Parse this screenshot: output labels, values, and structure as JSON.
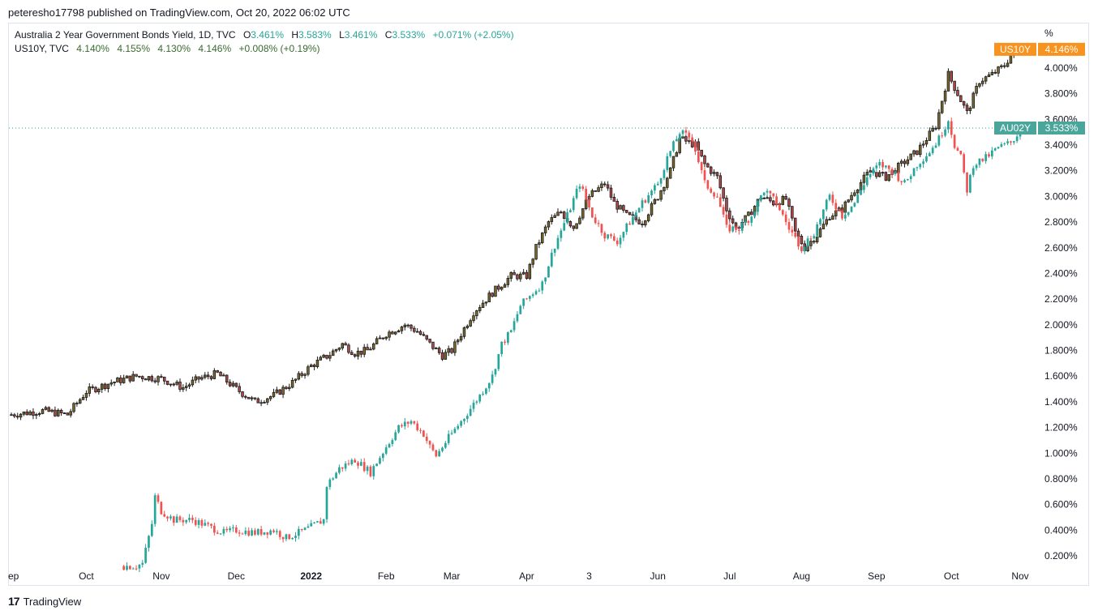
{
  "publisher": "peteresho17798 published on TradingView.com, Oct 20, 2022 06:02 UTC",
  "legend": [
    {
      "title": "Australia 2 Year Government Bonds Yield, 1D, TVC",
      "o_label": "O",
      "o": "3.461%",
      "h_label": "H",
      "h": "3.583%",
      "l_label": "L",
      "l": "3.461%",
      "c_label": "C",
      "c": "3.533%",
      "change": "+0.071% (+2.05%)"
    },
    {
      "title": "US10Y, TVC",
      "o": "4.140%",
      "h": "4.155%",
      "l": "4.130%",
      "c": "4.146%",
      "change": "+0.008% (+0.19%)"
    }
  ],
  "footer": {
    "logo": "17",
    "brand": "TradingView"
  },
  "chart_data": {
    "type": "candlestick",
    "unit": "%",
    "ylim": [
      0.05,
      4.35
    ],
    "y_ticks": [
      "4.000%",
      "3.800%",
      "3.600%",
      "3.400%",
      "3.200%",
      "3.000%",
      "2.800%",
      "2.600%",
      "2.400%",
      "2.200%",
      "2.000%",
      "1.800%",
      "1.600%",
      "1.400%",
      "1.200%",
      "1.000%",
      "0.800%",
      "0.600%",
      "0.400%",
      "0.200%"
    ],
    "y_tick_values": [
      4.0,
      3.8,
      3.6,
      3.4,
      3.2,
      3.0,
      2.8,
      2.6,
      2.4,
      2.2,
      2.0,
      1.8,
      1.6,
      1.4,
      1.2,
      1.0,
      0.8,
      0.6,
      0.4,
      0.2
    ],
    "y_unit_label": "%",
    "x_ticks": [
      {
        "label": "ep",
        "bold": false
      },
      {
        "label": "Oct",
        "bold": false
      },
      {
        "label": "Nov",
        "bold": false
      },
      {
        "label": "Dec",
        "bold": false
      },
      {
        "label": "2022",
        "bold": true
      },
      {
        "label": "Feb",
        "bold": false
      },
      {
        "label": "Mar",
        "bold": false
      },
      {
        "label": "Apr",
        "bold": false
      },
      {
        "label": "3",
        "bold": false
      },
      {
        "label": "Jun",
        "bold": false
      },
      {
        "label": "Jul",
        "bold": false
      },
      {
        "label": "Aug",
        "bold": false
      },
      {
        "label": "Sep",
        "bold": false
      },
      {
        "label": "Oct",
        "bold": false
      },
      {
        "label": "Nov",
        "bold": false
      }
    ],
    "x_tick_index": [
      0,
      24,
      48,
      72,
      96,
      120,
      141,
      165,
      185,
      207,
      230,
      253,
      277,
      301,
      323
    ],
    "x_range": [
      0,
      335
    ],
    "series": [
      {
        "name": "US10Y",
        "style": "hollow-dark",
        "start_index": 0,
        "last_value": 4.146,
        "last_label": "4.146%",
        "badge": "US10Y",
        "path": [
          [
            0,
            1.3
          ],
          [
            10,
            1.33
          ],
          [
            18,
            1.3
          ],
          [
            24,
            1.48
          ],
          [
            32,
            1.55
          ],
          [
            40,
            1.6
          ],
          [
            48,
            1.58
          ],
          [
            55,
            1.51
          ],
          [
            60,
            1.58
          ],
          [
            66,
            1.62
          ],
          [
            72,
            1.5
          ],
          [
            78,
            1.4
          ],
          [
            84,
            1.45
          ],
          [
            90,
            1.55
          ],
          [
            96,
            1.68
          ],
          [
            102,
            1.77
          ],
          [
            106,
            1.85
          ],
          [
            110,
            1.78
          ],
          [
            114,
            1.8
          ],
          [
            120,
            1.93
          ],
          [
            126,
            2.0
          ],
          [
            130,
            1.95
          ],
          [
            134,
            1.85
          ],
          [
            138,
            1.76
          ],
          [
            141,
            1.8
          ],
          [
            148,
            2.1
          ],
          [
            154,
            2.25
          ],
          [
            160,
            2.38
          ],
          [
            165,
            2.38
          ],
          [
            168,
            2.6
          ],
          [
            172,
            2.8
          ],
          [
            176,
            2.88
          ],
          [
            180,
            2.76
          ],
          [
            185,
            3.0
          ],
          [
            190,
            3.1
          ],
          [
            193,
            2.95
          ],
          [
            197,
            2.85
          ],
          [
            202,
            2.8
          ],
          [
            207,
            3.0
          ],
          [
            211,
            3.2
          ],
          [
            214,
            3.45
          ],
          [
            219,
            3.4
          ],
          [
            222,
            3.25
          ],
          [
            226,
            3.15
          ],
          [
            229,
            2.9
          ],
          [
            232,
            2.75
          ],
          [
            236,
            2.85
          ],
          [
            240,
            3.0
          ],
          [
            244,
            2.95
          ],
          [
            248,
            2.98
          ],
          [
            251,
            2.72
          ],
          [
            254,
            2.6
          ],
          [
            258,
            2.7
          ],
          [
            262,
            2.85
          ],
          [
            266,
            2.9
          ],
          [
            270,
            3.05
          ],
          [
            275,
            3.2
          ],
          [
            280,
            3.15
          ],
          [
            285,
            3.25
          ],
          [
            290,
            3.35
          ],
          [
            296,
            3.55
          ],
          [
            300,
            3.95
          ],
          [
            303,
            3.8
          ],
          [
            306,
            3.65
          ],
          [
            310,
            3.9
          ],
          [
            314,
            3.95
          ],
          [
            318,
            4.02
          ],
          [
            320,
            4.1
          ],
          [
            322,
            4.15
          ],
          [
            323,
            4.146
          ]
        ]
      },
      {
        "name": "AU02Y",
        "style": "colored",
        "start_index": 36,
        "last_value": 3.533,
        "last_label": "3.533%",
        "badge": "AU02Y",
        "path": [
          [
            36,
            0.12
          ],
          [
            40,
            0.12
          ],
          [
            42,
            0.14
          ],
          [
            45,
            0.45
          ],
          [
            46,
            0.66
          ],
          [
            48,
            0.55
          ],
          [
            52,
            0.48
          ],
          [
            58,
            0.48
          ],
          [
            64,
            0.42
          ],
          [
            68,
            0.38
          ],
          [
            72,
            0.4
          ],
          [
            78,
            0.38
          ],
          [
            84,
            0.4
          ],
          [
            88,
            0.34
          ],
          [
            94,
            0.4
          ],
          [
            100,
            0.48
          ],
          [
            101,
            0.75
          ],
          [
            105,
            0.88
          ],
          [
            110,
            0.95
          ],
          [
            115,
            0.85
          ],
          [
            120,
            1.05
          ],
          [
            124,
            1.2
          ],
          [
            128,
            1.25
          ],
          [
            132,
            1.15
          ],
          [
            134,
            1.05
          ],
          [
            136,
            0.98
          ],
          [
            140,
            1.12
          ],
          [
            145,
            1.28
          ],
          [
            150,
            1.45
          ],
          [
            154,
            1.6
          ],
          [
            157,
            1.85
          ],
          [
            160,
            1.95
          ],
          [
            163,
            2.15
          ],
          [
            167,
            2.25
          ],
          [
            170,
            2.32
          ],
          [
            174,
            2.62
          ],
          [
            178,
            2.85
          ],
          [
            182,
            3.1
          ],
          [
            186,
            2.85
          ],
          [
            190,
            2.7
          ],
          [
            194,
            2.65
          ],
          [
            198,
            2.8
          ],
          [
            202,
            2.95
          ],
          [
            207,
            3.1
          ],
          [
            210,
            3.3
          ],
          [
            214,
            3.5
          ],
          [
            218,
            3.45
          ],
          [
            222,
            3.1
          ],
          [
            226,
            3.0
          ],
          [
            229,
            2.75
          ],
          [
            233,
            2.75
          ],
          [
            237,
            2.85
          ],
          [
            241,
            3.05
          ],
          [
            245,
            2.95
          ],
          [
            249,
            2.75
          ],
          [
            253,
            2.6
          ],
          [
            257,
            2.72
          ],
          [
            262,
            3.0
          ],
          [
            266,
            2.85
          ],
          [
            270,
            2.95
          ],
          [
            274,
            3.15
          ],
          [
            278,
            3.25
          ],
          [
            282,
            3.2
          ],
          [
            286,
            3.1
          ],
          [
            290,
            3.25
          ],
          [
            294,
            3.35
          ],
          [
            297,
            3.45
          ],
          [
            300,
            3.6
          ],
          [
            302,
            3.4
          ],
          [
            304,
            3.3
          ],
          [
            306,
            3.05
          ],
          [
            308,
            3.25
          ],
          [
            312,
            3.3
          ],
          [
            316,
            3.38
          ],
          [
            320,
            3.42
          ],
          [
            322,
            3.48
          ],
          [
            323,
            3.533
          ]
        ]
      }
    ],
    "dotted_line_value": 3.533
  }
}
